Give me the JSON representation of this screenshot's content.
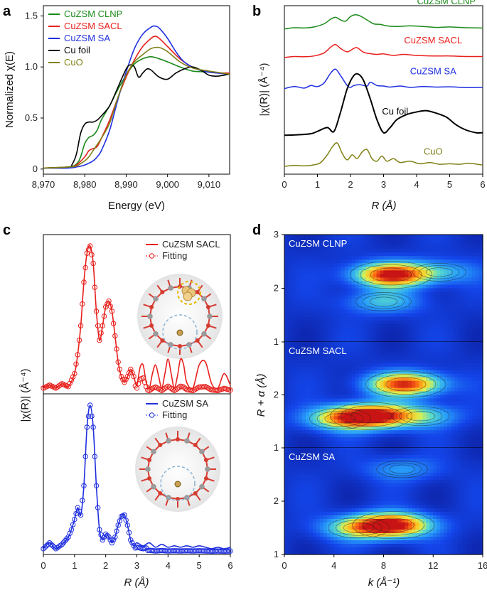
{
  "panels": {
    "a": {
      "label": "a",
      "xlabel": "Energy (eV)",
      "ylabel": "Normalized χ(E)"
    },
    "b": {
      "label": "b",
      "xlabel": "R (Å)",
      "ylabel": "|χ(R)| (Å⁻⁴)"
    },
    "c": {
      "label": "c",
      "xlabel": "R (Å)",
      "ylabel": "|χ(R)| (Å⁻⁴)"
    },
    "d": {
      "label": "d",
      "xlabel": "k (Å⁻¹)",
      "ylabel": "R + α (Å)"
    }
  },
  "colors": {
    "CuZSM CLNP": "#1a8a1a",
    "CuZSM SACL": "#e8201c",
    "CuZSM SA": "#1f2fe0",
    "Cu foil": "#000000",
    "CuO": "#808016"
  },
  "chart_data": [
    {
      "id": "a",
      "type": "line",
      "title": "",
      "xlabel": "Energy (eV)",
      "ylabel": "Normalized χ(E)",
      "xlim": [
        8970,
        9015
      ],
      "ylim": [
        -0.05,
        1.6
      ],
      "xticks": [
        "8,970",
        "8,980",
        "8,990",
        "9,000",
        "9,010"
      ],
      "yticks": [
        "0",
        "0.5",
        "1.0",
        "1.5"
      ],
      "legend": [
        "CuZSM CLNP",
        "CuZSM SACL",
        "CuZSM SA",
        "Cu foil",
        "CuO"
      ],
      "series": [
        {
          "name": "CuZSM CLNP",
          "x": [
            8970,
            8976,
            8978,
            8979,
            8980,
            8981,
            8982,
            8983,
            8984,
            8986,
            8988,
            8990,
            8992,
            8994,
            8996,
            8998,
            9000,
            9003,
            9006,
            9010,
            9015
          ],
          "y": [
            0.01,
            0.02,
            0.05,
            0.12,
            0.25,
            0.31,
            0.33,
            0.38,
            0.48,
            0.62,
            0.78,
            0.92,
            1.03,
            1.08,
            1.1,
            1.08,
            1.05,
            1.0,
            0.96,
            0.95,
            0.93
          ]
        },
        {
          "name": "CuZSM SACL",
          "x": [
            8970,
            8976,
            8978,
            8980,
            8981,
            8982,
            8983,
            8984,
            8986,
            8988,
            8990,
            8992,
            8994,
            8996,
            8997,
            8998,
            9000,
            9003,
            9006,
            9010,
            9015
          ],
          "y": [
            0.01,
            0.02,
            0.04,
            0.12,
            0.18,
            0.2,
            0.22,
            0.3,
            0.48,
            0.7,
            0.9,
            1.07,
            1.2,
            1.28,
            1.3,
            1.28,
            1.2,
            1.08,
            1.0,
            0.95,
            0.94
          ]
        },
        {
          "name": "CuZSM SA",
          "x": [
            8970,
            8976,
            8978,
            8980,
            8982,
            8983,
            8984,
            8986,
            8988,
            8990,
            8992,
            8994,
            8996,
            8997,
            8998,
            9000,
            9002,
            9004,
            9007,
            9010,
            9015
          ],
          "y": [
            0.01,
            0.01,
            0.02,
            0.04,
            0.08,
            0.12,
            0.18,
            0.38,
            0.68,
            0.95,
            1.18,
            1.32,
            1.39,
            1.4,
            1.38,
            1.28,
            1.15,
            1.05,
            0.98,
            0.95,
            0.93
          ]
        },
        {
          "name": "Cu foil",
          "x": [
            8970,
            8976,
            8977,
            8978,
            8979,
            8980,
            8981,
            8982,
            8983,
            8984,
            8986,
            8988,
            8990,
            8991,
            8992,
            8993,
            8994,
            8995,
            8996,
            8998,
            9000,
            9002,
            9004,
            9006,
            9008,
            9010,
            9012,
            9015
          ],
          "y": [
            0.01,
            0.02,
            0.05,
            0.15,
            0.35,
            0.44,
            0.46,
            0.46,
            0.48,
            0.52,
            0.62,
            0.8,
            0.98,
            1.02,
            1.0,
            0.9,
            0.94,
            0.98,
            0.97,
            0.9,
            0.88,
            0.94,
            0.98,
            1.0,
            0.97,
            0.92,
            0.91,
            0.93
          ]
        },
        {
          "name": "CuO",
          "x": [
            8970,
            8976,
            8978,
            8980,
            8981,
            8982,
            8983,
            8984,
            8986,
            8988,
            8990,
            8992,
            8994,
            8996,
            8998,
            9000,
            9003,
            9006,
            9010,
            9015
          ],
          "y": [
            0.01,
            0.02,
            0.03,
            0.08,
            0.12,
            0.18,
            0.24,
            0.3,
            0.45,
            0.7,
            0.92,
            1.05,
            1.12,
            1.18,
            1.19,
            1.15,
            1.05,
            0.99,
            0.96,
            0.93
          ]
        }
      ]
    },
    {
      "id": "b",
      "type": "line",
      "xlabel": "R (Å)",
      "ylabel": "|χ(R)| (Å⁻⁴)",
      "xlim": [
        0,
        6
      ],
      "xticks": [
        "0",
        "1",
        "2",
        "3",
        "4",
        "5",
        "6"
      ],
      "series": [
        {
          "name": "CuZSM CLNP",
          "label": "CuZSM CLNP",
          "offset": 5.3,
          "x": [
            0,
            0.3,
            0.6,
            0.9,
            1.2,
            1.4,
            1.55,
            1.7,
            1.85,
            2.0,
            2.15,
            2.3,
            2.5,
            2.7,
            2.9,
            3.1,
            3.4,
            3.8,
            4.2,
            4.6,
            5.0,
            5.5,
            6.0
          ],
          "y": [
            0,
            0.05,
            0.04,
            0.08,
            0.2,
            0.38,
            0.45,
            0.35,
            0.3,
            0.48,
            0.55,
            0.5,
            0.35,
            0.2,
            0.18,
            0.12,
            0.1,
            0.12,
            0.1,
            0.06,
            0.08,
            0.05,
            0.04
          ]
        },
        {
          "name": "CuZSM SACL",
          "label": "CuZSM SACL",
          "offset": 4.2,
          "x": [
            0,
            0.3,
            0.6,
            0.9,
            1.2,
            1.4,
            1.55,
            1.7,
            1.9,
            2.1,
            2.2,
            2.4,
            2.6,
            2.8,
            3.0,
            3.3,
            3.6,
            4.0,
            4.5,
            5.0,
            5.5,
            6.0
          ],
          "y": [
            0,
            0.04,
            0.03,
            0.06,
            0.18,
            0.4,
            0.5,
            0.35,
            0.22,
            0.35,
            0.38,
            0.2,
            0.15,
            0.12,
            0.14,
            0.08,
            0.12,
            0.08,
            0.06,
            0.06,
            0.04,
            0.04
          ]
        },
        {
          "name": "CuZSM SA",
          "label": "CuZSM SA",
          "offset": 3.0,
          "x": [
            0,
            0.3,
            0.6,
            0.8,
            1.0,
            1.2,
            1.4,
            1.55,
            1.7,
            1.9,
            2.0,
            2.1,
            2.3,
            2.5,
            2.6,
            2.8,
            3.0,
            3.2,
            3.5,
            3.8,
            4.2,
            4.6,
            5.0,
            5.5,
            6.0
          ],
          "y": [
            0,
            0.08,
            0.02,
            0.12,
            0.08,
            0.22,
            0.6,
            0.75,
            0.5,
            0.12,
            0.05,
            0.12,
            0.15,
            0.1,
            0.25,
            0.12,
            0.1,
            0.06,
            0.1,
            0.05,
            0.08,
            0.06,
            0.07,
            0.04,
            0.05
          ]
        },
        {
          "name": "Cu foil",
          "label": "Cu foil",
          "offset": 1.2,
          "x": [
            0,
            0.4,
            0.8,
            1.0,
            1.3,
            1.5,
            1.7,
            1.9,
            2.1,
            2.25,
            2.4,
            2.6,
            2.8,
            3.0,
            3.2,
            3.4,
            3.7,
            4.0,
            4.3,
            4.6,
            4.9,
            5.2,
            5.5,
            5.8,
            6.0
          ],
          "y": [
            0,
            0.02,
            0.06,
            0.15,
            0.3,
            0.15,
            0.9,
            1.8,
            2.3,
            2.35,
            2.1,
            1.4,
            0.6,
            0.1,
            0.3,
            0.6,
            0.8,
            0.9,
            0.95,
            0.85,
            0.7,
            0.4,
            0.2,
            0.1,
            0.1
          ]
        },
        {
          "name": "CuO",
          "label": "CuO",
          "offset": 0,
          "x": [
            0,
            0.3,
            0.6,
            0.9,
            1.1,
            1.3,
            1.45,
            1.6,
            1.75,
            1.9,
            2.05,
            2.2,
            2.35,
            2.5,
            2.65,
            2.8,
            2.95,
            3.1,
            3.3,
            3.5,
            3.8,
            4.1,
            4.4,
            4.7,
            5.0,
            5.3,
            5.6,
            6.0
          ],
          "y": [
            0,
            0.04,
            0.02,
            0.06,
            0.15,
            0.45,
            0.75,
            0.9,
            0.5,
            0.25,
            0.45,
            0.3,
            0.55,
            0.65,
            0.3,
            0.2,
            0.4,
            0.2,
            0.3,
            0.15,
            0.2,
            0.1,
            0.15,
            0.08,
            0.1,
            0.08,
            0.12,
            0.05
          ]
        }
      ]
    },
    {
      "id": "c",
      "type": "line",
      "xlabel": "R (Å)",
      "ylabel": "|χ(R)| (Å⁻⁴)",
      "xlim": [
        0,
        6
      ],
      "xticks": [
        "0",
        "1",
        "2",
        "3",
        "4",
        "5",
        "6"
      ],
      "subpanels": [
        {
          "name": "CuZSM SACL",
          "legend": [
            "CuZSM SACL",
            "Fitting"
          ],
          "x": [
            0,
            0.2,
            0.4,
            0.6,
            0.8,
            1.0,
            1.1,
            1.2,
            1.3,
            1.4,
            1.5,
            1.6,
            1.7,
            1.8,
            1.9,
            2.0,
            2.1,
            2.2,
            2.3,
            2.4,
            2.5,
            2.6,
            2.7,
            2.8,
            2.9,
            3.0,
            3.1,
            3.2,
            3.3,
            3.4,
            3.5,
            3.6,
            3.7,
            3.8,
            3.9,
            4.0,
            4.1,
            4.2,
            4.3,
            4.4,
            4.5,
            4.6,
            4.8,
            5.0,
            5.2,
            5.4,
            5.6,
            5.8,
            6.0
          ],
          "y": [
            0.02,
            0.04,
            0.02,
            0.05,
            0.03,
            0.12,
            0.25,
            0.45,
            0.75,
            0.95,
            1.0,
            0.88,
            0.55,
            0.35,
            0.45,
            0.58,
            0.62,
            0.55,
            0.38,
            0.2,
            0.1,
            0.06,
            0.1,
            0.15,
            0.1,
            0.04,
            0.16,
            0.18,
            0.06,
            0.02,
            0.12,
            0.18,
            0.1,
            0.02,
            0.12,
            0.22,
            0.12,
            0.02,
            0.1,
            0.22,
            0.18,
            0.06,
            0.02,
            0.18,
            0.2,
            0.05,
            0.02,
            0.12,
            0.04
          ]
        },
        {
          "name": "CuZSM SA",
          "legend": [
            "CuZSM SA",
            "Fitting"
          ],
          "x": [
            0,
            0.2,
            0.4,
            0.6,
            0.8,
            0.9,
            1.0,
            1.1,
            1.2,
            1.3,
            1.4,
            1.5,
            1.6,
            1.7,
            1.8,
            1.9,
            2.0,
            2.1,
            2.2,
            2.3,
            2.4,
            2.5,
            2.6,
            2.7,
            2.8,
            2.9,
            3.0,
            3.2,
            3.4,
            3.6,
            3.8,
            4.0,
            4.2,
            4.4,
            4.6,
            4.8,
            5.0,
            5.2,
            5.4,
            5.6,
            5.8,
            6.0
          ],
          "y": [
            0.02,
            0.06,
            0.02,
            0.05,
            0.1,
            0.15,
            0.22,
            0.3,
            0.25,
            0.45,
            0.85,
            1.0,
            0.85,
            0.45,
            0.15,
            0.08,
            0.12,
            0.1,
            0.06,
            0.1,
            0.18,
            0.24,
            0.25,
            0.18,
            0.08,
            0.04,
            0.06,
            0.04,
            0.06,
            0.03,
            0.05,
            0.03,
            0.04,
            0.03,
            0.04,
            0.03,
            0.04,
            0.03,
            0.02,
            0.03,
            0.02,
            0.03
          ]
        }
      ]
    },
    {
      "id": "d",
      "type": "heatmap",
      "xlabel": "k (Å⁻¹)",
      "ylabel": "R + α (Å)",
      "xlim": [
        0,
        16
      ],
      "xticks": [
        "0",
        "4",
        "8",
        "12",
        "16"
      ],
      "subpanels": [
        {
          "name": "CuZSM CLNP",
          "ylim": [
            1,
            3
          ],
          "yticks": [
            "1",
            "2",
            "3"
          ],
          "peaks": [
            {
              "k": 8.6,
              "r": 2.25,
              "intensity": 1.0
            },
            {
              "k": 8.0,
              "r": 1.75,
              "intensity": 0.35
            },
            {
              "k": 12.5,
              "r": 2.3,
              "intensity": 0.3
            }
          ]
        },
        {
          "name": "CuZSM SACL",
          "ylim": [
            1,
            3
          ],
          "yticks": [
            "1",
            "2"
          ],
          "peaks": [
            {
              "k": 7.0,
              "r": 1.6,
              "intensity": 1.0
            },
            {
              "k": 9.8,
              "r": 2.2,
              "intensity": 0.95
            },
            {
              "k": 4.5,
              "r": 1.55,
              "intensity": 0.5
            },
            {
              "k": 11.0,
              "r": 1.6,
              "intensity": 0.4
            }
          ]
        },
        {
          "name": "CuZSM SA",
          "ylim": [
            1,
            3
          ],
          "yticks": [
            "1",
            "2"
          ],
          "peaks": [
            {
              "k": 8.8,
              "r": 1.55,
              "intensity": 1.0
            },
            {
              "k": 6.0,
              "r": 1.5,
              "intensity": 0.5
            },
            {
              "k": 9.5,
              "r": 2.6,
              "intensity": 0.25
            }
          ]
        }
      ]
    }
  ]
}
